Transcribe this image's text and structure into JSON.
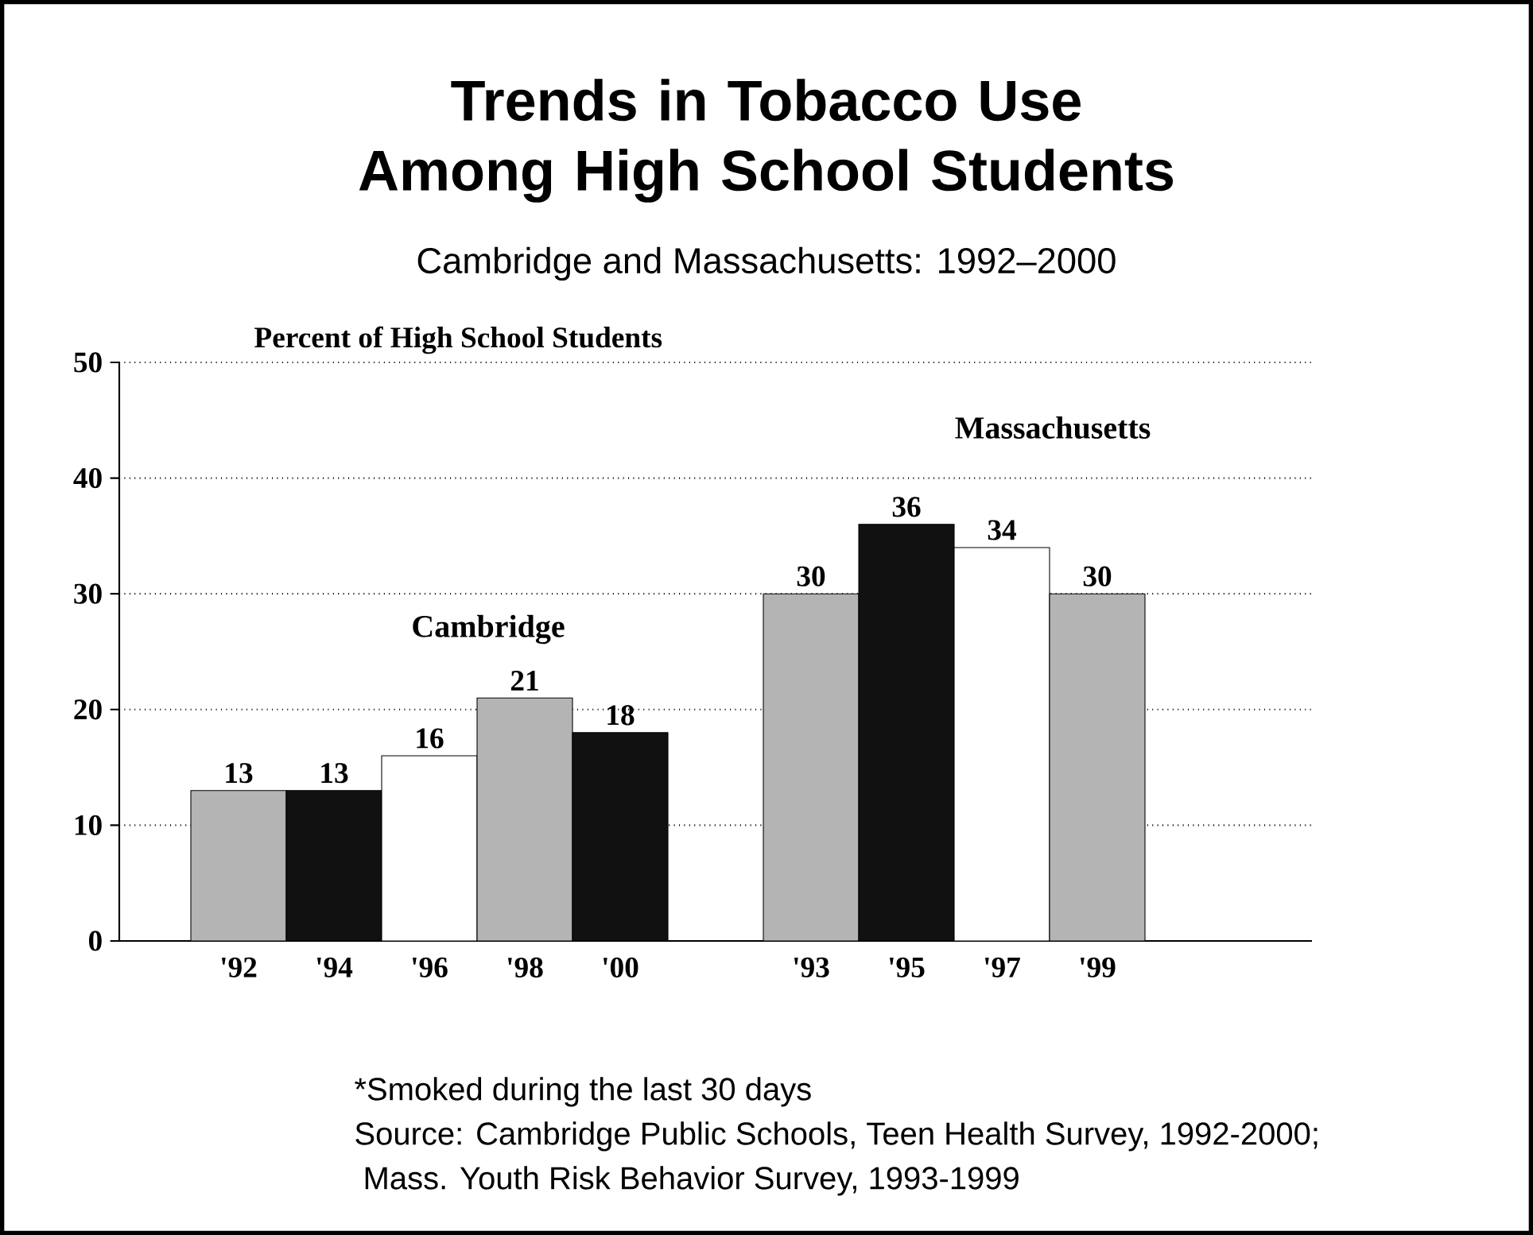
{
  "chart_data": {
    "type": "bar",
    "title": "Trends in Tobacco Use Among High School Students",
    "subtitle": "Cambridge and Massachusetts: 1992–2000",
    "ylabel": "Percent of High School Students",
    "categories": [
      "'92",
      "'94",
      "'96",
      "'98",
      "'00",
      null,
      "'93",
      "'95",
      "'97",
      "'99"
    ],
    "values": [
      13,
      13,
      16,
      21,
      18,
      null,
      30,
      36,
      34,
      30
    ],
    "colors": [
      "#b4b4b4",
      "#111111",
      "#ffffff",
      "#b4b4b4",
      "#111111",
      null,
      "#b4b4b4",
      "#111111",
      "#ffffff",
      "#b4b4b4"
    ],
    "ylim": [
      0,
      50
    ],
    "yticks": [
      0,
      10,
      20,
      30,
      40,
      50
    ],
    "grid": "y",
    "data_labels": true,
    "annotations": [
      "Cambridge",
      "Massachusetts",
      "*Smoked during the last 30 days",
      "Source: Cambridge Public Schools, Teen Health Survey, 1992-2000;",
      " Mass. Youth Risk Behavior Survey, 1993-1999"
    ]
  }
}
